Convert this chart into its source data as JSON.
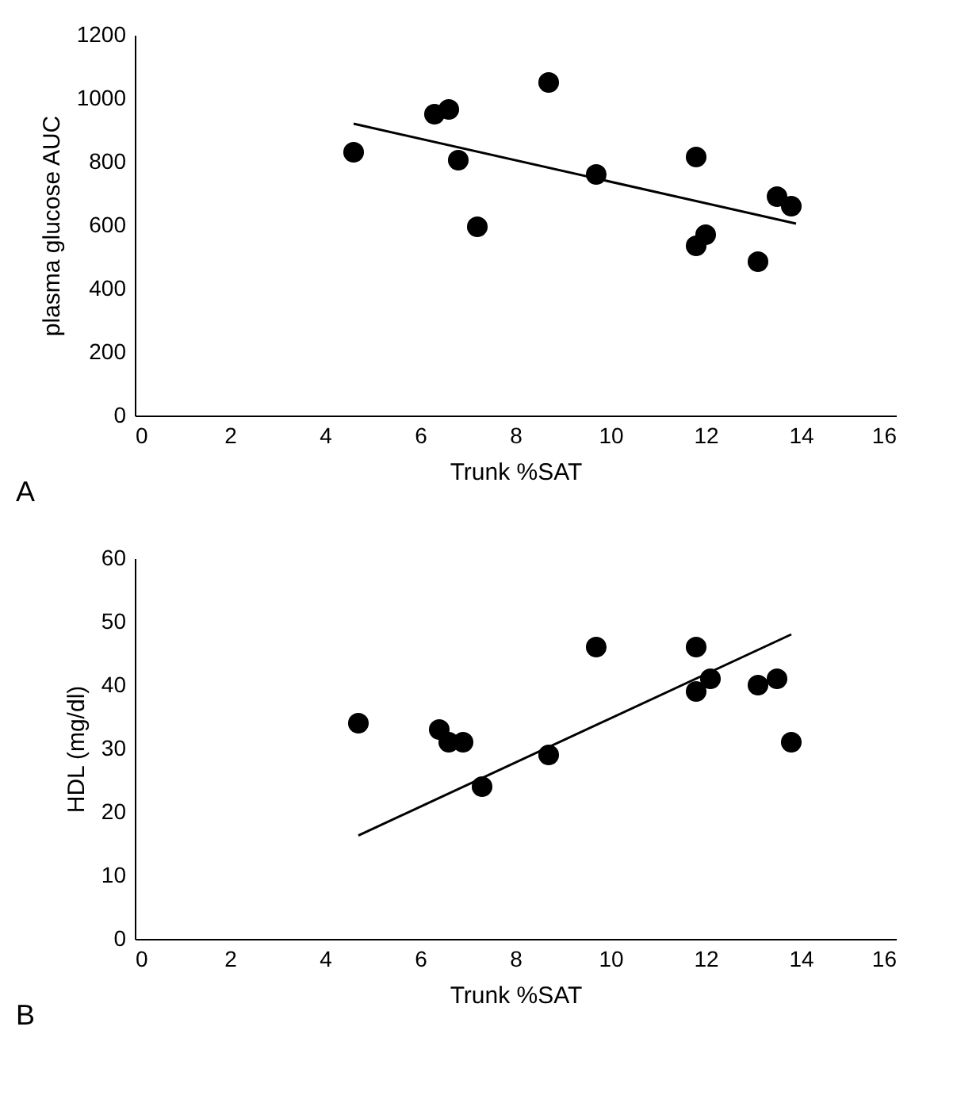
{
  "chart_data": [
    {
      "type": "scatter",
      "xlabel": "Trunk %SAT",
      "ylabel": "plasma glucose AUC",
      "annotations": [
        "A"
      ],
      "xlim": [
        0,
        16
      ],
      "xticks": [
        0,
        2,
        4,
        6,
        8,
        10,
        12,
        14,
        16
      ],
      "ylim": [
        0,
        1200
      ],
      "yticks": [
        0,
        200,
        400,
        600,
        800,
        1000,
        1200
      ],
      "grid": false,
      "series": [
        {
          "color": "#000000",
          "marker": "circle",
          "x": [
            4.6,
            6.3,
            6.6,
            6.8,
            7.2,
            8.7,
            9.7,
            11.8,
            11.8,
            12.0,
            13.1,
            13.5,
            13.8
          ],
          "values": [
            830,
            950,
            965,
            805,
            595,
            1050,
            760,
            815,
            535,
            570,
            485,
            690,
            660
          ]
        },
        {
          "type": "line",
          "color": "#000000",
          "x": [
            4.6,
            13.9
          ],
          "values": [
            920,
            605
          ]
        }
      ]
    },
    {
      "type": "scatter",
      "xlabel": "Trunk %SAT",
      "ylabel": "HDL (mg/dl)",
      "annotations": [
        "B"
      ],
      "xlim": [
        0,
        16
      ],
      "xticks": [
        0,
        2,
        4,
        6,
        8,
        10,
        12,
        14,
        16
      ],
      "ylim": [
        0,
        60
      ],
      "yticks": [
        0,
        10,
        20,
        30,
        40,
        50,
        60
      ],
      "grid": false,
      "series": [
        {
          "color": "#000000",
          "marker": "circle",
          "x": [
            4.7,
            6.4,
            6.6,
            6.9,
            7.3,
            8.7,
            9.7,
            11.8,
            11.8,
            12.1,
            13.1,
            13.5,
            13.8
          ],
          "values": [
            34,
            33,
            31,
            31,
            24,
            29,
            46,
            46,
            39,
            41,
            40,
            41,
            31
          ]
        },
        {
          "type": "line",
          "color": "#000000",
          "x": [
            4.7,
            13.8
          ],
          "values": [
            16.3,
            48
          ]
        }
      ]
    }
  ]
}
